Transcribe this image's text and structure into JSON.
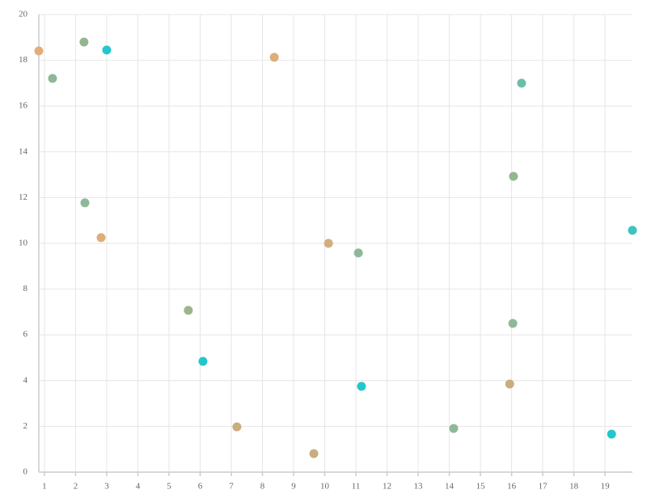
{
  "chart_data": {
    "type": "scatter",
    "x": [
      0.82,
      1.26,
      2.27,
      3.0,
      2.3,
      2.82,
      8.38,
      5.62,
      6.09,
      7.18,
      9.65,
      10.12,
      11.08,
      11.18,
      14.14,
      16.32,
      16.06,
      16.04,
      15.94,
      19.21,
      19.88
    ],
    "values": [
      18.41,
      17.21,
      18.8,
      18.45,
      11.77,
      10.25,
      18.13,
      7.07,
      4.84,
      1.98,
      0.81,
      10.0,
      9.58,
      3.75,
      1.91,
      17.0,
      12.93,
      6.5,
      3.85,
      1.66,
      10.57
    ],
    "colors": [
      "#e3ad77",
      "#8fb89a",
      "#93b690",
      "#22c7cc",
      "#8fb89a",
      "#dcae7a",
      "#dcae7a",
      "#9cb58a",
      "#22c7cc",
      "#c9ad7f",
      "#c9ad7f",
      "#d0ae7d",
      "#8fb89a",
      "#22c7cc",
      "#8fb89a",
      "#6bbfaa",
      "#93b690",
      "#8fb89a",
      "#c9ad7f",
      "#22c7cc",
      "#3cc4bf"
    ],
    "xlim": [
      0.82,
      19.88
    ],
    "ylim": [
      0,
      20
    ],
    "xticks": [
      1,
      2,
      3,
      4,
      5,
      6,
      7,
      8,
      9,
      10,
      11,
      12,
      13,
      14,
      15,
      16,
      17,
      18,
      19
    ],
    "yticks": [
      0,
      2,
      4,
      6,
      8,
      10,
      12,
      14,
      16,
      18,
      20
    ],
    "grid": true
  }
}
